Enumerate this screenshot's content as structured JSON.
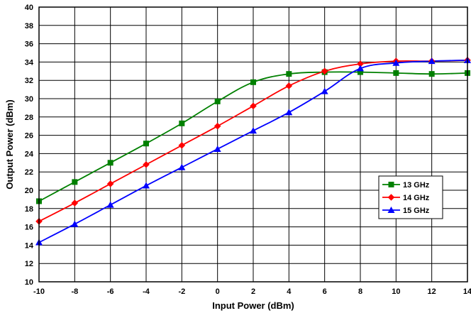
{
  "chart_data": {
    "type": "line",
    "xlabel": "Input Power (dBm)",
    "ylabel": "Output Power (dBm)",
    "xlim": [
      -10,
      14
    ],
    "ylim": [
      10,
      40
    ],
    "x_ticks": [
      -10,
      -8,
      -6,
      -4,
      -2,
      0,
      2,
      4,
      6,
      8,
      10,
      12,
      14
    ],
    "y_ticks": [
      10,
      12,
      14,
      16,
      18,
      20,
      22,
      24,
      26,
      28,
      30,
      32,
      34,
      36,
      38,
      40
    ],
    "x_tick_labels": [
      "-10",
      "-8",
      "-6",
      "-4",
      "-2",
      "0",
      "2",
      "4",
      "6",
      "8",
      "10",
      "12",
      "14"
    ],
    "y_tick_labels": [
      "10",
      "12",
      "14",
      "16",
      "18",
      "20",
      "22",
      "24",
      "26",
      "28",
      "30",
      "32",
      "34",
      "36",
      "38",
      "40"
    ],
    "grid": true,
    "legend_position": "right",
    "series": [
      {
        "name": "13 GHz",
        "color": "#008000",
        "marker": "square",
        "x": [
          -10,
          -8,
          -6,
          -4,
          -2,
          0,
          2,
          4,
          6,
          8,
          10,
          12,
          14
        ],
        "y": [
          18.8,
          20.9,
          23.0,
          25.1,
          27.3,
          29.7,
          31.8,
          32.7,
          32.9,
          32.9,
          32.8,
          32.7,
          32.8
        ]
      },
      {
        "name": "14 GHz",
        "color": "#ff0000",
        "marker": "diamond",
        "x": [
          -10,
          -8,
          -6,
          -4,
          -2,
          0,
          2,
          4,
          6,
          8,
          10,
          12,
          14
        ],
        "y": [
          16.6,
          18.6,
          20.7,
          22.8,
          24.9,
          27.0,
          29.2,
          31.4,
          33.0,
          33.8,
          34.1,
          34.1,
          34.2
        ]
      },
      {
        "name": "15 GHz",
        "color": "#0000ff",
        "marker": "triangle",
        "x": [
          -10,
          -8,
          -6,
          -4,
          -2,
          0,
          2,
          4,
          6,
          8,
          10,
          12,
          14
        ],
        "y": [
          14.3,
          16.3,
          18.4,
          20.5,
          22.5,
          24.5,
          26.5,
          28.5,
          30.8,
          33.3,
          33.9,
          34.1,
          34.2
        ]
      }
    ]
  }
}
